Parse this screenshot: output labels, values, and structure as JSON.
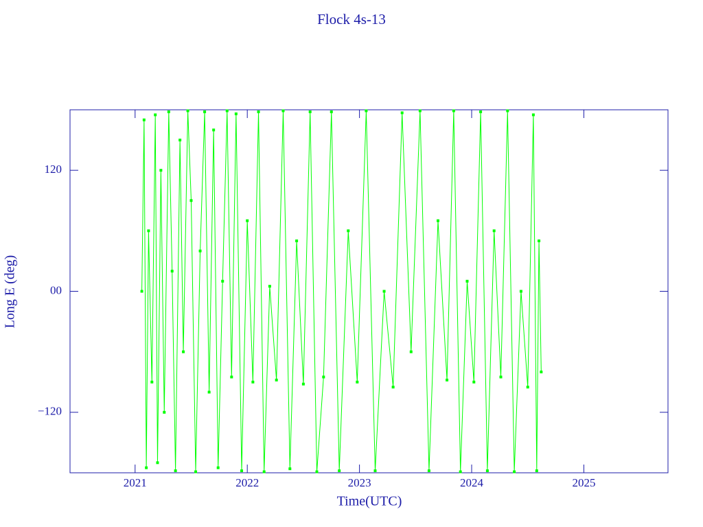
{
  "chart_data": {
    "type": "line",
    "title": "Flock 4s-13",
    "x_label": "Time(UTC)",
    "y_label": "Long E (deg)",
    "x": [
      2021.06,
      2021.08,
      2021.1,
      2021.12,
      2021.15,
      2021.18,
      2021.2,
      2021.23,
      2021.26,
      2021.3,
      2021.33,
      2021.36,
      2021.4,
      2021.43,
      2021.47,
      2021.5,
      2021.54,
      2021.58,
      2021.62,
      2021.66,
      2021.7,
      2021.74,
      2021.78,
      2021.82,
      2021.86,
      2021.9,
      2021.95,
      2022.0,
      2022.05,
      2022.1,
      2022.15,
      2022.2,
      2022.26,
      2022.32,
      2022.38,
      2022.44,
      2022.5,
      2022.56,
      2022.62,
      2022.68,
      2022.75,
      2022.82,
      2022.9,
      2022.98,
      2023.06,
      2023.14,
      2023.22,
      2023.3,
      2023.38,
      2023.46,
      2023.54,
      2023.62,
      2023.7,
      2023.78,
      2023.84,
      2023.9,
      2023.96,
      2024.02,
      2024.08,
      2024.14,
      2024.2,
      2024.26,
      2024.32,
      2024.38,
      2024.44,
      2024.5,
      2024.55,
      2024.58,
      2024.6,
      2024.62
    ],
    "series": [
      {
        "name": "Long E",
        "color": "#00ff00",
        "values": [
          0,
          170,
          -175,
          60,
          -90,
          175,
          -170,
          120,
          -120,
          178,
          20,
          -178,
          150,
          -60,
          179,
          90,
          -179,
          40,
          178,
          -100,
          160,
          -175,
          10,
          179,
          -85,
          176,
          -178,
          70,
          -90,
          178,
          -179,
          5,
          -88,
          179,
          -176,
          50,
          -92,
          178,
          -179,
          -85,
          178,
          -178,
          60,
          -90,
          179,
          -178,
          0,
          -95,
          177,
          -60,
          179,
          -178,
          70,
          -88,
          179,
          -179,
          10,
          -90,
          178,
          -178,
          60,
          -85,
          179,
          -179,
          0,
          -95,
          175,
          -178,
          50,
          -80
        ]
      }
    ],
    "xlim": [
      2020.42,
      2025.75
    ],
    "xticks": [
      2021,
      2022,
      2023,
      2024,
      2025
    ],
    "ylim": [
      -180,
      180
    ],
    "yticks": [
      {
        "value": -120,
        "label": "−120"
      },
      {
        "value": 0,
        "label": "00"
      },
      120
    ]
  }
}
